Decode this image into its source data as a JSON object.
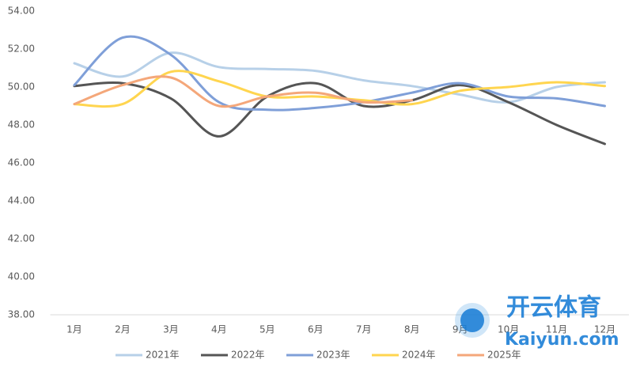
{
  "chart_data": {
    "type": "line",
    "categories": [
      "1月",
      "2月",
      "3月",
      "4月",
      "5月",
      "6月",
      "7月",
      "8月",
      "9月",
      "10月",
      "11月",
      "12月"
    ],
    "series": [
      {
        "name": "2021年",
        "color": "#b7d0e8",
        "values": [
          51.25,
          50.55,
          51.8,
          51.05,
          50.95,
          50.85,
          50.35,
          50.05,
          49.6,
          49.2,
          50.0,
          50.25
        ]
      },
      {
        "name": "2022年",
        "color": "#555555",
        "values": [
          50.05,
          50.2,
          49.4,
          47.4,
          49.5,
          50.2,
          49.0,
          49.3,
          50.1,
          49.2,
          48.0,
          47.0
        ]
      },
      {
        "name": "2023年",
        "color": "#7f9fd8",
        "values": [
          50.1,
          52.6,
          51.7,
          49.2,
          48.8,
          48.9,
          49.2,
          49.7,
          50.2,
          49.5,
          49.4,
          49.0
        ]
      },
      {
        "name": "2024年",
        "color": "#ffd54f",
        "values": [
          49.1,
          49.1,
          50.8,
          50.3,
          49.5,
          49.5,
          49.3,
          49.1,
          49.8,
          50.0,
          50.25,
          50.05
        ]
      },
      {
        "name": "2025年",
        "color": "#f4a77a",
        "values": [
          49.1,
          50.1,
          50.5,
          49.0,
          49.5,
          49.7,
          49.2,
          49.3,
          null,
          null,
          null,
          null
        ]
      }
    ],
    "ylim": [
      38,
      54
    ],
    "yticks": [
      {
        "value": 38,
        "label": "38.00"
      },
      {
        "value": 40,
        "label": "40.00"
      },
      {
        "value": 42,
        "label": "42.00"
      },
      {
        "value": 44,
        "label": "44.00"
      },
      {
        "value": 46,
        "label": "46.00"
      },
      {
        "value": 48,
        "label": "48.00"
      },
      {
        "value": 50,
        "label": "50.00"
      },
      {
        "value": 52,
        "label": "52.00"
      },
      {
        "value": 54,
        "label": "54.00"
      }
    ],
    "grid": false,
    "legend": "bottom"
  },
  "watermark": {
    "brand": "开云体育",
    "site": "Kaiyun.com"
  }
}
